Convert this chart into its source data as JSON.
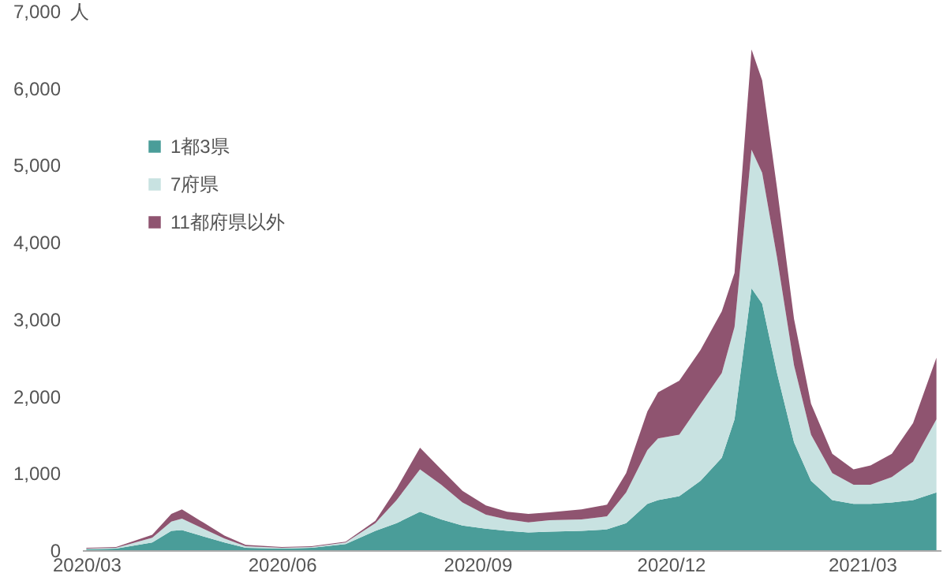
{
  "chart_data": {
    "type": "area",
    "stacked": true,
    "ylabel": "人",
    "legend": "top left",
    "x": [
      "2020-03-01",
      "2020-03-15",
      "2020-04-01",
      "2020-04-10",
      "2020-04-15",
      "2020-04-25",
      "2020-05-05",
      "2020-05-15",
      "2020-06-01",
      "2020-06-15",
      "2020-07-01",
      "2020-07-15",
      "2020-07-25",
      "2020-08-05",
      "2020-08-15",
      "2020-08-25",
      "2020-09-05",
      "2020-09-15",
      "2020-09-25",
      "2020-10-05",
      "2020-10-20",
      "2020-11-01",
      "2020-11-10",
      "2020-11-20",
      "2020-11-25",
      "2020-12-05",
      "2020-12-15",
      "2020-12-25",
      "2020-12-31",
      "2021-01-08",
      "2021-01-13",
      "2021-01-20",
      "2021-01-28",
      "2021-02-05",
      "2021-02-15",
      "2021-02-25",
      "2021-03-05",
      "2021-03-15",
      "2021-03-25",
      "2021-04-05"
    ],
    "series": [
      {
        "name": "1都3県",
        "color": "#4a9d99",
        "values": [
          10,
          20,
          100,
          250,
          260,
          180,
          100,
          30,
          20,
          30,
          80,
          250,
          350,
          500,
          400,
          320,
          280,
          250,
          230,
          240,
          250,
          270,
          350,
          600,
          650,
          700,
          900,
          1200,
          1700,
          3400,
          3200,
          2300,
          1400,
          900,
          650,
          600,
          600,
          620,
          650,
          750
        ]
      },
      {
        "name": "7府県",
        "color": "#c8e2e1",
        "values": [
          10,
          10,
          60,
          120,
          150,
          100,
          50,
          20,
          10,
          10,
          20,
          100,
          300,
          550,
          450,
          300,
          180,
          150,
          130,
          150,
          150,
          170,
          400,
          700,
          800,
          800,
          1000,
          1100,
          1200,
          1800,
          1700,
          1500,
          1000,
          600,
          350,
          250,
          250,
          330,
          500,
          950
        ]
      },
      {
        "name": "11都府県以外",
        "color": "#8f5470",
        "values": [
          10,
          10,
          40,
          100,
          120,
          80,
          40,
          20,
          10,
          10,
          10,
          30,
          150,
          280,
          200,
          150,
          120,
          100,
          110,
          100,
          130,
          150,
          250,
          500,
          600,
          700,
          700,
          800,
          700,
          1300,
          1200,
          900,
          600,
          400,
          250,
          200,
          250,
          300,
          500,
          800
        ]
      }
    ],
    "xlim": [
      "2020-02-28",
      "2021-04-07"
    ],
    "xticks": [
      {
        "value": "2020-03-01",
        "label": "2020/03"
      },
      {
        "value": "2020-06-01",
        "label": "2020/06"
      },
      {
        "value": "2020-09-01",
        "label": "2020/09"
      },
      {
        "value": "2020-12-01",
        "label": "2020/12"
      },
      {
        "value": "2021-03-01",
        "label": "2021/03"
      }
    ],
    "ylim": [
      0,
      7000
    ],
    "yticks": [
      0,
      {
        "value": 1000,
        "label": "1,000"
      },
      {
        "value": 2000,
        "label": "2,000"
      },
      {
        "value": 3000,
        "label": "3,000"
      },
      {
        "value": 4000,
        "label": "4,000"
      },
      {
        "value": 5000,
        "label": "5,000"
      },
      {
        "value": 6000,
        "label": "6,000"
      },
      {
        "value": 7000,
        "label": "7,000"
      }
    ]
  }
}
